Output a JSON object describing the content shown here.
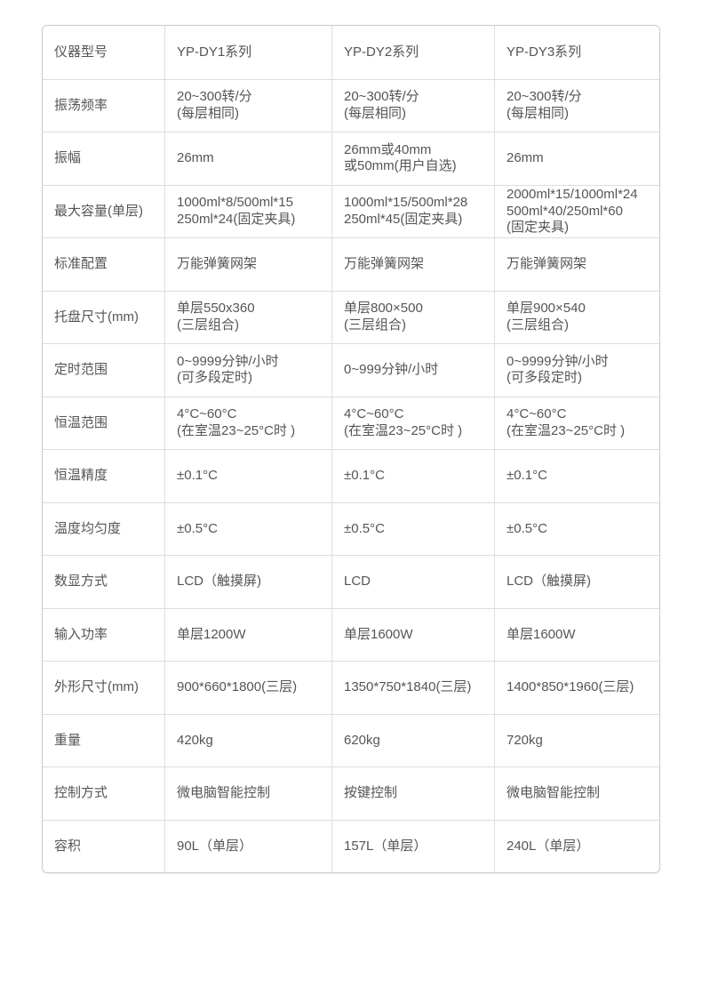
{
  "page": {
    "background_color": "#ffffff"
  },
  "table": {
    "border_color": "#cccccc",
    "grid_line_color": "#dddddd",
    "text_color": "#555555",
    "rows": [
      {
        "label": "仪器型号",
        "values": [
          "YP-DY1系列",
          "YP-DY2系列",
          "YP-DY3系列"
        ]
      },
      {
        "label": "振荡频率",
        "values": [
          "20~300转/分\n(每层相同)",
          "20~300转/分\n(每层相同)",
          "20~300转/分\n(每层相同)"
        ]
      },
      {
        "label": "振幅",
        "values": [
          "26mm",
          "26mm或40mm\n或50mm(用户自选)",
          "26mm"
        ]
      },
      {
        "label": "最大容量(单层)",
        "values": [
          "1000ml*8/500ml*15\n250ml*24(固定夹具)",
          "1000ml*15/500ml*28\n250ml*45(固定夹具)",
          "2000ml*15/1000ml*24\n500ml*40/250ml*60\n(固定夹具)"
        ]
      },
      {
        "label": "标准配置",
        "values": [
          "万能弹簧网架",
          "万能弹簧网架",
          "万能弹簧网架"
        ]
      },
      {
        "label": "托盘尺寸(mm)",
        "values": [
          "单层550x360\n(三层组合)",
          "单层800×500\n(三层组合)",
          "单层900×540\n(三层组合)"
        ]
      },
      {
        "label": "定时范围",
        "values": [
          "0~9999分钟/小时\n(可多段定时)",
          "0~999分钟/小时",
          "0~9999分钟/小时\n(可多段定时)"
        ]
      },
      {
        "label": "恒温范围",
        "values": [
          "4°C~60°C\n(在室温23~25°C时 )",
          "4°C~60°C\n(在室温23~25°C时 )",
          "4°C~60°C\n(在室温23~25°C时 )"
        ]
      },
      {
        "label": "恒温精度",
        "values": [
          "±0.1°C",
          "±0.1°C",
          "±0.1°C"
        ]
      },
      {
        "label": "温度均匀度",
        "values": [
          "±0.5°C",
          "±0.5°C",
          "±0.5°C"
        ]
      },
      {
        "label": "数显方式",
        "values": [
          "LCD（触摸屏)",
          "LCD",
          "LCD（触摸屏)"
        ]
      },
      {
        "label": "输入功率",
        "values": [
          "单层1200W",
          "单层1600W",
          "单层1600W"
        ]
      },
      {
        "label": "外形尺寸(mm)",
        "values": [
          "900*660*1800(三层)",
          "1350*750*1840(三层)",
          "1400*850*1960(三层)"
        ]
      },
      {
        "label": "重量",
        "values": [
          "420kg",
          "620kg",
          "720kg"
        ]
      },
      {
        "label": "控制方式",
        "values": [
          "微电脑智能控制",
          "按键控制",
          "微电脑智能控制"
        ]
      },
      {
        "label": "容积",
        "values": [
          "90L（单层）",
          "157L（单层）",
          "240L（单层）"
        ]
      }
    ]
  }
}
